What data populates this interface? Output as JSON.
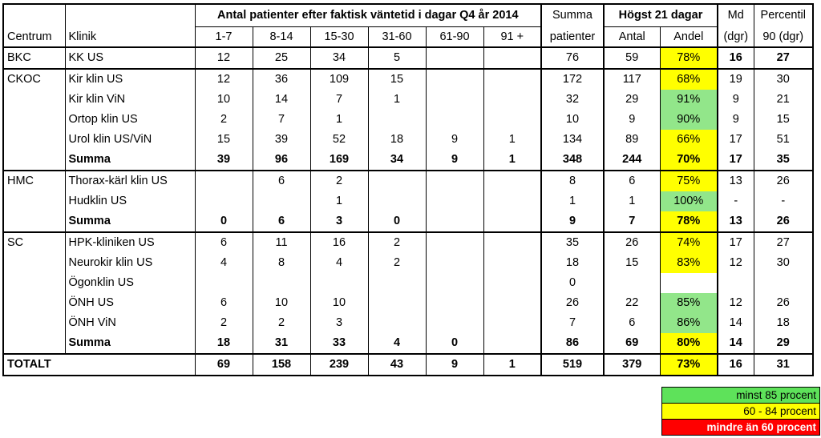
{
  "header": {
    "group_title": "Antal patienter efter faktisk väntetid i dagar Q4 år 2014",
    "summa_top": "Summa",
    "summa_bottom": "patienter",
    "h21_title": "Högst 21 dagar",
    "md_top": "Md",
    "md_bottom": "(dgr)",
    "perc_top": "Percentil",
    "perc_bottom": "90 (dgr)",
    "centrum": "Centrum",
    "klinik": "Klinik",
    "bins": [
      "1-7",
      "8-14",
      "15-30",
      "31-60",
      "61-90",
      "91 +"
    ],
    "antal": "Antal",
    "andel": "Andel"
  },
  "rows": [
    {
      "centrum": "BKC",
      "klinik": "KK US",
      "bins": [
        "12",
        "25",
        "34",
        "5",
        "",
        ""
      ],
      "summa": "76",
      "antal": "59",
      "andel": "78%",
      "andel_color": "#ffff00",
      "md": "16",
      "p90": "27",
      "bold": false,
      "bold_tail": true,
      "grpstart": true
    },
    {
      "centrum": "CKOC",
      "klinik": "Kir klin US",
      "bins": [
        "12",
        "36",
        "109",
        "15",
        "",
        ""
      ],
      "summa": "172",
      "antal": "117",
      "andel": "68%",
      "andel_color": "#ffff00",
      "md": "19",
      "p90": "30",
      "bold": false,
      "grpstart": true
    },
    {
      "centrum": "",
      "klinik": "Kir klin ViN",
      "bins": [
        "10",
        "14",
        "7",
        "1",
        "",
        ""
      ],
      "summa": "32",
      "antal": "29",
      "andel": "91%",
      "andel_color": "#92e68a",
      "md": "9",
      "p90": "21",
      "bold": false
    },
    {
      "centrum": "",
      "klinik": "Ortop klin US",
      "bins": [
        "2",
        "7",
        "1",
        "",
        "",
        ""
      ],
      "summa": "10",
      "antal": "9",
      "andel": "90%",
      "andel_color": "#92e68a",
      "md": "9",
      "p90": "15",
      "bold": false
    },
    {
      "centrum": "",
      "klinik": "Urol klin US/ViN",
      "bins": [
        "15",
        "39",
        "52",
        "18",
        "9",
        "1"
      ],
      "summa": "134",
      "antal": "89",
      "andel": "66%",
      "andel_color": "#ffff00",
      "md": "17",
      "p90": "51",
      "bold": false
    },
    {
      "centrum": "",
      "klinik": "Summa",
      "bins": [
        "39",
        "96",
        "169",
        "34",
        "9",
        "1"
      ],
      "summa": "348",
      "antal": "244",
      "andel": "70%",
      "andel_color": "#ffff00",
      "md": "17",
      "p90": "35",
      "bold": true
    },
    {
      "centrum": "HMC",
      "klinik": "Thorax-kärl klin US",
      "bins": [
        "",
        "6",
        "2",
        "",
        "",
        ""
      ],
      "summa": "8",
      "antal": "6",
      "andel": "75%",
      "andel_color": "#ffff00",
      "md": "13",
      "p90": "26",
      "bold": false,
      "grpstart": true
    },
    {
      "centrum": "",
      "klinik": "Hudklin US",
      "bins": [
        "",
        "",
        "1",
        "",
        "",
        ""
      ],
      "summa": "1",
      "antal": "1",
      "andel": "100%",
      "andel_color": "#92e68a",
      "md": "-",
      "p90": "-",
      "bold": false
    },
    {
      "centrum": "",
      "klinik": "Summa",
      "bins": [
        "0",
        "6",
        "3",
        "0",
        "",
        ""
      ],
      "summa": "9",
      "antal": "7",
      "andel": "78%",
      "andel_color": "#ffff00",
      "md": "13",
      "p90": "26",
      "bold": true
    },
    {
      "centrum": "SC",
      "klinik": "HPK-kliniken US",
      "bins": [
        "6",
        "11",
        "16",
        "2",
        "",
        ""
      ],
      "summa": "35",
      "antal": "26",
      "andel": "74%",
      "andel_color": "#ffff00",
      "md": "17",
      "p90": "27",
      "bold": false,
      "grpstart": true
    },
    {
      "centrum": "",
      "klinik": "Neurokir klin US",
      "bins": [
        "4",
        "8",
        "4",
        "2",
        "",
        ""
      ],
      "summa": "18",
      "antal": "15",
      "andel": "83%",
      "andel_color": "#ffff00",
      "md": "12",
      "p90": "30",
      "bold": false
    },
    {
      "centrum": "",
      "klinik": "Ögonklin US",
      "bins": [
        "",
        "",
        "",
        "",
        "",
        ""
      ],
      "summa": "0",
      "antal": "",
      "andel": "",
      "andel_color": "#ffffff",
      "md": "",
      "p90": "",
      "bold": false
    },
    {
      "centrum": "",
      "klinik": "ÖNH US",
      "bins": [
        "6",
        "10",
        "10",
        "",
        "",
        ""
      ],
      "summa": "26",
      "antal": "22",
      "andel": "85%",
      "andel_color": "#92e68a",
      "md": "12",
      "p90": "26",
      "bold": false
    },
    {
      "centrum": "",
      "klinik": "ÖNH ViN",
      "bins": [
        "2",
        "2",
        "3",
        "",
        "",
        ""
      ],
      "summa": "7",
      "antal": "6",
      "andel": "86%",
      "andel_color": "#92e68a",
      "md": "14",
      "p90": "18",
      "bold": false
    },
    {
      "centrum": "",
      "klinik": "Summa",
      "bins": [
        "18",
        "31",
        "33",
        "4",
        "0",
        ""
      ],
      "summa": "86",
      "antal": "69",
      "andel": "80%",
      "andel_color": "#ffff00",
      "md": "14",
      "p90": "29",
      "bold": true
    }
  ],
  "total": {
    "label": "TOTALT",
    "bins": [
      "69",
      "158",
      "239",
      "43",
      "9",
      "1"
    ],
    "summa": "519",
    "antal": "379",
    "andel": "73%",
    "andel_color": "#ffff00",
    "md": "16",
    "p90": "31"
  },
  "legend": [
    {
      "label": "minst 85 procent",
      "color": "#5ee25a"
    },
    {
      "label": "60 - 84 procent",
      "color": "#ffff00"
    },
    {
      "label": "mindre än 60 procent",
      "color": "#ff0000"
    }
  ]
}
